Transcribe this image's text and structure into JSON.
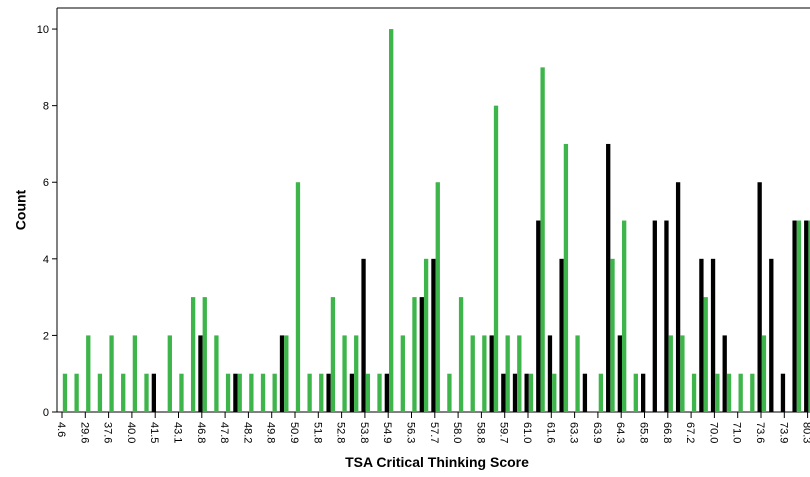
{
  "chart_data": {
    "type": "bar",
    "x_label": "TSA Critical Thinking Score",
    "y_label": "Count",
    "categories": [
      "4.6",
      null,
      "29.6",
      null,
      "37.6",
      null,
      "40.0",
      null,
      "41.5",
      null,
      "43.1",
      null,
      "46.8",
      null,
      "47.8",
      null,
      "48.2",
      null,
      "49.8",
      null,
      "50.9",
      null,
      "51.8",
      null,
      "52.8",
      null,
      "53.8",
      null,
      "54.9",
      null,
      "56.3",
      null,
      "57.7",
      null,
      "58.0",
      null,
      "58.8",
      null,
      "59.7",
      null,
      "61.0",
      null,
      "61.6",
      null,
      "63.3",
      null,
      "63.9",
      null,
      "64.3",
      null,
      "65.8",
      null,
      "66.8",
      null,
      "67.2",
      null,
      "70.0",
      null,
      "71.0",
      null,
      "73.6",
      null,
      "73.9",
      null,
      "80.3"
    ],
    "series": [
      {
        "color": "#000000",
        "values": [
          0,
          0,
          0,
          0,
          0,
          0,
          0,
          0,
          1,
          0,
          0,
          0,
          2,
          0,
          0,
          1,
          0,
          0,
          0,
          2,
          0,
          0,
          0,
          1,
          0,
          1,
          4,
          0,
          1,
          0,
          0,
          3,
          4,
          0,
          0,
          0,
          0,
          2,
          1,
          1,
          1,
          5,
          2,
          4,
          0,
          1,
          0,
          7,
          2,
          0,
          1,
          5,
          5,
          6,
          0,
          4,
          4,
          2,
          0,
          0,
          6,
          4,
          1,
          5,
          5
        ]
      },
      {
        "color": "#3db54a",
        "values": [
          1,
          1,
          2,
          1,
          2,
          1,
          2,
          1,
          0,
          2,
          1,
          3,
          3,
          2,
          1,
          1,
          1,
          1,
          1,
          2,
          6,
          1,
          1,
          3,
          2,
          2,
          1,
          1,
          10,
          2,
          3,
          4,
          6,
          1,
          3,
          2,
          2,
          8,
          2,
          2,
          1,
          9,
          1,
          7,
          2,
          0,
          1,
          4,
          5,
          1,
          0,
          0,
          2,
          2,
          1,
          3,
          1,
          1,
          1,
          1,
          2,
          0,
          0,
          5,
          5
        ]
      }
    ],
    "ylim": [
      0,
      10.55
    ],
    "yticks": [
      0,
      2,
      4,
      6,
      8,
      10
    ],
    "grid": false
  }
}
